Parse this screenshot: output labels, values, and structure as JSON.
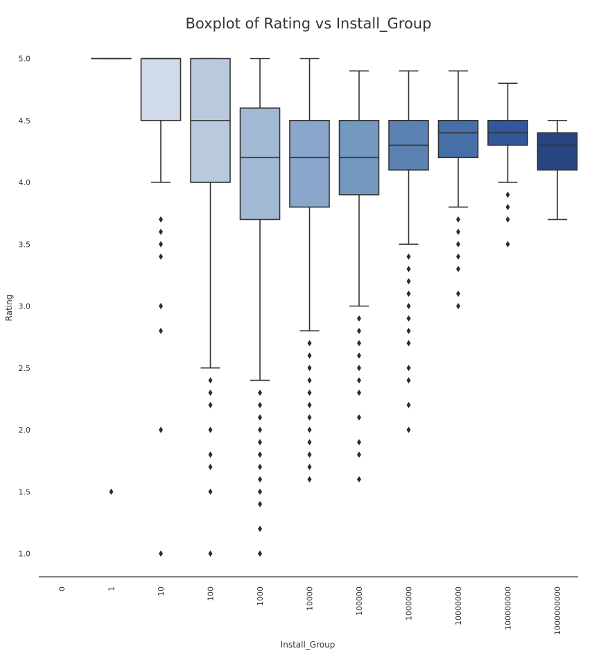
{
  "chart_data": {
    "type": "box",
    "title": "Boxplot of Rating vs Install_Group",
    "xlabel": "Install_Group",
    "ylabel": "Rating",
    "ylim": [
      0.8,
      5.15
    ],
    "yticks": [
      "1.0",
      "1.5",
      "2.0",
      "2.5",
      "3.0",
      "3.5",
      "4.0",
      "4.5",
      "5.0"
    ],
    "grid": false,
    "legend": "none",
    "categories": [
      "0",
      "1",
      "10",
      "100",
      "1000",
      "10000",
      "100000",
      "1000000",
      "10000000",
      "100000000",
      "1000000000"
    ],
    "boxes": [
      {
        "category": "0",
        "empty": true
      },
      {
        "category": "1",
        "whislo": 5.0,
        "q1": 5.0,
        "med": 5.0,
        "q3": 5.0,
        "whishi": 5.0,
        "fliers": [
          1.5
        ]
      },
      {
        "category": "10",
        "whislo": 4.0,
        "q1": 4.5,
        "med": 5.0,
        "q3": 5.0,
        "whishi": 5.0,
        "fliers": [
          3.7,
          3.6,
          3.5,
          3.4,
          3.0,
          2.8,
          2.0,
          1.0
        ]
      },
      {
        "category": "100",
        "whislo": 2.5,
        "q1": 4.0,
        "med": 4.5,
        "q3": 5.0,
        "whishi": 5.0,
        "fliers": [
          2.4,
          2.3,
          2.2,
          2.0,
          1.8,
          1.7,
          1.5,
          1.0
        ]
      },
      {
        "category": "1000",
        "whislo": 2.4,
        "q1": 3.7,
        "med": 4.2,
        "q3": 4.6,
        "whishi": 5.0,
        "fliers": [
          2.3,
          2.2,
          2.1,
          2.0,
          1.9,
          1.8,
          1.7,
          1.6,
          1.5,
          1.4,
          1.2,
          1.0
        ]
      },
      {
        "category": "10000",
        "whislo": 2.8,
        "q1": 3.8,
        "med": 4.2,
        "q3": 4.5,
        "whishi": 5.0,
        "fliers": [
          2.7,
          2.6,
          2.5,
          2.4,
          2.3,
          2.2,
          2.1,
          2.0,
          1.9,
          1.8,
          1.7,
          1.6
        ]
      },
      {
        "category": "100000",
        "whislo": 3.0,
        "q1": 3.9,
        "med": 4.2,
        "q3": 4.5,
        "whishi": 4.9,
        "fliers": [
          2.9,
          2.8,
          2.7,
          2.6,
          2.5,
          2.4,
          2.3,
          2.1,
          1.9,
          1.8,
          1.6
        ]
      },
      {
        "category": "1000000",
        "whislo": 3.5,
        "q1": 4.1,
        "med": 4.3,
        "q3": 4.5,
        "whishi": 4.9,
        "fliers": [
          3.4,
          3.3,
          3.2,
          3.1,
          3.0,
          2.9,
          2.8,
          2.7,
          2.5,
          2.4,
          2.2,
          2.0
        ]
      },
      {
        "category": "10000000",
        "whislo": 3.8,
        "q1": 4.2,
        "med": 4.4,
        "q3": 4.5,
        "whishi": 4.9,
        "fliers": [
          3.7,
          3.6,
          3.5,
          3.4,
          3.3,
          3.1,
          3.0
        ]
      },
      {
        "category": "100000000",
        "whislo": 4.0,
        "q1": 4.3,
        "med": 4.4,
        "q3": 4.5,
        "whishi": 4.8,
        "fliers": [
          3.9,
          3.8,
          3.7,
          3.5
        ]
      },
      {
        "category": "1000000000",
        "whislo": 3.7,
        "q1": 4.1,
        "med": 4.3,
        "q3": 4.4,
        "whishi": 4.5,
        "fliers": []
      }
    ],
    "colors": {
      "boxes": [
        "#e4e9f2",
        "#dfe5f0",
        "#d1dbea",
        "#b9cadf",
        "#a2b9d4",
        "#8aa7cb",
        "#7499c1",
        "#5c82b3",
        "#476fa8",
        "#33579a",
        "#274580"
      ],
      "line": "#333333",
      "flier": "#2a2a2a"
    }
  }
}
